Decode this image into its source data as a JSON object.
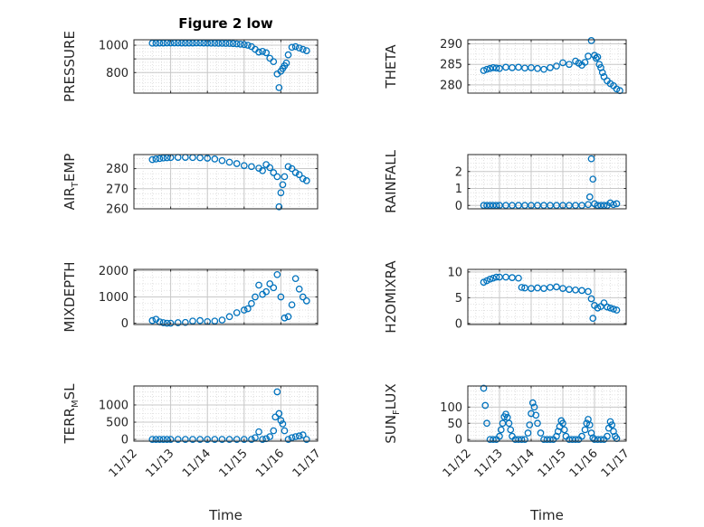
{
  "chart_data": [
    {
      "type": "scatter",
      "title": "Figure 2 low",
      "ylabel": "PRESSURE",
      "ylabel_parts": [
        "PRESSURE"
      ],
      "ylim": [
        650,
        1040
      ],
      "yticks": [
        800,
        900,
        1000
      ],
      "yticklabels": [
        "800",
        "",
        "1000"
      ],
      "xlim": [
        0,
        5
      ],
      "xticks": [
        0,
        1,
        2,
        3,
        4,
        5
      ],
      "xticklabels": [],
      "grid": true,
      "marker_color": "#0072BD",
      "x": [
        0.5,
        0.6,
        0.7,
        0.8,
        0.9,
        1.0,
        1.1,
        1.2,
        1.3,
        1.4,
        1.5,
        1.6,
        1.7,
        1.8,
        1.9,
        2.0,
        2.1,
        2.2,
        2.3,
        2.4,
        2.5,
        2.6,
        2.7,
        2.8,
        2.9,
        3.0,
        3.1,
        3.2,
        3.3,
        3.4,
        3.5,
        3.6,
        3.7,
        3.8,
        3.9,
        3.95,
        4.0,
        4.05,
        4.1,
        4.15,
        4.2,
        4.3,
        4.4,
        4.5,
        4.6,
        4.7
      ],
      "y": [
        1015,
        1015,
        1016,
        1016,
        1017,
        1017,
        1017,
        1017,
        1016,
        1016,
        1016,
        1016,
        1017,
        1017,
        1016,
        1016,
        1015,
        1015,
        1014,
        1014,
        1013,
        1013,
        1012,
        1010,
        1008,
        1005,
        1000,
        990,
        970,
        950,
        955,
        945,
        905,
        880,
        790,
        690,
        810,
        830,
        850,
        870,
        930,
        985,
        990,
        980,
        970,
        960
      ]
    },
    {
      "type": "scatter",
      "ylabel": "THETA",
      "ylabel_parts": [
        "THETA"
      ],
      "ylim": [
        278,
        291
      ],
      "yticks": [
        280,
        285,
        290
      ],
      "yticklabels": [
        "280",
        "285",
        "290"
      ],
      "xlim": [
        0,
        5
      ],
      "xticks": [
        0,
        1,
        2,
        3,
        4,
        5
      ],
      "xticklabels": [],
      "grid": true,
      "marker_color": "#0072BD",
      "x": [
        0.5,
        0.6,
        0.7,
        0.8,
        0.9,
        1.0,
        1.2,
        1.4,
        1.6,
        1.8,
        2.0,
        2.2,
        2.4,
        2.6,
        2.8,
        3.0,
        3.2,
        3.4,
        3.5,
        3.6,
        3.7,
        3.8,
        3.9,
        4.0,
        4.05,
        4.1,
        4.15,
        4.2,
        4.25,
        4.3,
        4.4,
        4.5,
        4.6,
        4.7,
        4.8
      ],
      "y": [
        283.5,
        283.8,
        284.0,
        284.2,
        284.1,
        284.0,
        284.3,
        284.2,
        284.3,
        284.1,
        284.2,
        284.0,
        283.8,
        284.2,
        284.6,
        285.4,
        285.0,
        285.8,
        285.3,
        284.8,
        285.5,
        287.0,
        290.8,
        287.2,
        286.5,
        286.8,
        285.0,
        284.2,
        283.0,
        282.0,
        281.0,
        280.3,
        279.8,
        279.0,
        278.6
      ]
    },
    {
      "type": "scatter",
      "ylabel": "AIR_TEMP",
      "ylabel_parts": [
        "AIR",
        "T",
        "EMP"
      ],
      "ylim": [
        260,
        287
      ],
      "yticks": [
        260,
        270,
        280
      ],
      "yticklabels": [
        "260",
        "270",
        "280"
      ],
      "xlim": [
        0,
        5
      ],
      "xticks": [
        0,
        1,
        2,
        3,
        4,
        5
      ],
      "xticklabels": [],
      "grid": true,
      "marker_color": "#0072BD",
      "x": [
        0.5,
        0.6,
        0.7,
        0.8,
        0.9,
        1.0,
        1.2,
        1.4,
        1.6,
        1.8,
        2.0,
        2.2,
        2.4,
        2.6,
        2.8,
        3.0,
        3.2,
        3.4,
        3.5,
        3.6,
        3.7,
        3.8,
        3.9,
        3.95,
        4.0,
        4.05,
        4.1,
        4.2,
        4.3,
        4.4,
        4.5,
        4.6,
        4.7
      ],
      "y": [
        284.5,
        284.8,
        285.0,
        285.3,
        285.4,
        285.5,
        285.6,
        285.6,
        285.5,
        285.4,
        285.2,
        284.8,
        284.0,
        283.2,
        282.5,
        281.5,
        281.0,
        280.2,
        279.0,
        282.0,
        280.5,
        278.0,
        276.0,
        261.0,
        268.0,
        272.0,
        276.0,
        281.0,
        280.0,
        278.0,
        277.0,
        275.0,
        274.0
      ]
    },
    {
      "type": "scatter",
      "ylabel": "RAINFALL",
      "ylabel_parts": [
        "RAINFALL"
      ],
      "ylim": [
        -0.2,
        3.0
      ],
      "yticks": [
        0,
        1,
        2
      ],
      "yticklabels": [
        "0",
        "1",
        "2"
      ],
      "xlim": [
        0,
        5
      ],
      "xticks": [
        0,
        1,
        2,
        3,
        4,
        5
      ],
      "xticklabels": [],
      "grid": true,
      "marker_color": "#0072BD",
      "x": [
        0.5,
        0.6,
        0.7,
        0.8,
        0.9,
        1.0,
        1.2,
        1.4,
        1.6,
        1.8,
        2.0,
        2.2,
        2.4,
        2.6,
        2.8,
        3.0,
        3.2,
        3.4,
        3.6,
        3.8,
        3.85,
        3.9,
        3.95,
        4.0,
        4.1,
        4.2,
        4.3,
        4.4,
        4.5,
        4.6,
        4.7
      ],
      "y": [
        0,
        0,
        0,
        0,
        0,
        0,
        0,
        0,
        0,
        0,
        0,
        0,
        0,
        0,
        0,
        0,
        0,
        0,
        0,
        0.05,
        0.5,
        2.75,
        1.55,
        0.1,
        0,
        0,
        0,
        0,
        0.15,
        0.05,
        0.1
      ]
    },
    {
      "type": "scatter",
      "ylabel": "MIXDEPTH",
      "ylabel_parts": [
        "MIXDEPTH"
      ],
      "ylim": [
        -50,
        2050
      ],
      "yticks": [
        0,
        1000,
        2000
      ],
      "yticklabels": [
        "0",
        "1000",
        "2000"
      ],
      "xlim": [
        0,
        5
      ],
      "xticks": [
        0,
        1,
        2,
        3,
        4,
        5
      ],
      "xticklabels": [],
      "grid": true,
      "marker_color": "#0072BD",
      "x": [
        0.5,
        0.6,
        0.7,
        0.8,
        0.9,
        1.0,
        1.2,
        1.4,
        1.6,
        1.8,
        2.0,
        2.2,
        2.4,
        2.6,
        2.8,
        3.0,
        3.1,
        3.2,
        3.3,
        3.4,
        3.5,
        3.6,
        3.7,
        3.8,
        3.9,
        4.0,
        4.1,
        4.2,
        4.3,
        4.4,
        4.5,
        4.6,
        4.7
      ],
      "y": [
        100,
        150,
        50,
        20,
        0,
        0,
        20,
        30,
        80,
        100,
        60,
        80,
        120,
        250,
        400,
        500,
        550,
        750,
        1000,
        1450,
        1100,
        1200,
        1500,
        1350,
        1850,
        1000,
        200,
        250,
        700,
        1700,
        1300,
        1000,
        850
      ]
    },
    {
      "type": "scatter",
      "ylabel": "H2OMIXRA",
      "ylabel_parts": [
        "H2OMIXRA"
      ],
      "ylim": [
        -0.2,
        10.5
      ],
      "yticks": [
        0,
        5,
        10
      ],
      "yticklabels": [
        "0",
        "5",
        "10"
      ],
      "xlim": [
        0,
        5
      ],
      "xticks": [
        0,
        1,
        2,
        3,
        4,
        5
      ],
      "xticklabels": [],
      "grid": true,
      "marker_color": "#0072BD",
      "x": [
        0.5,
        0.6,
        0.7,
        0.8,
        0.9,
        1.0,
        1.2,
        1.4,
        1.6,
        1.7,
        1.8,
        2.0,
        2.2,
        2.4,
        2.6,
        2.8,
        3.0,
        3.2,
        3.4,
        3.6,
        3.8,
        3.9,
        3.95,
        4.0,
        4.1,
        4.2,
        4.3,
        4.4,
        4.5,
        4.6,
        4.7
      ],
      "y": [
        8.0,
        8.3,
        8.6,
        8.8,
        9.0,
        9.0,
        9.0,
        8.9,
        8.8,
        7.0,
        6.9,
        6.8,
        6.9,
        6.8,
        7.0,
        7.1,
        6.8,
        6.6,
        6.5,
        6.4,
        6.2,
        4.8,
        1.0,
        3.5,
        3.0,
        3.3,
        4.0,
        3.2,
        3.0,
        2.8,
        2.6
      ]
    },
    {
      "type": "scatter",
      "ylabel": "TERR_MSL",
      "ylabel_parts": [
        "TERR",
        "M",
        "SL"
      ],
      "ylim": [
        -50,
        1550
      ],
      "yticks": [
        0,
        500,
        1000
      ],
      "yticklabels": [
        "0",
        "500",
        "1000"
      ],
      "xlim": [
        0,
        5
      ],
      "xticks": [
        0,
        1,
        2,
        3,
        4,
        5
      ],
      "xticklabels": [
        "11/12",
        "11/13",
        "11/14",
        "11/15",
        "11/16",
        "11/17"
      ],
      "xlabel": "Time",
      "grid": true,
      "marker_color": "#0072BD",
      "x": [
        0.5,
        0.6,
        0.7,
        0.8,
        0.9,
        1.0,
        1.2,
        1.4,
        1.6,
        1.8,
        2.0,
        2.2,
        2.4,
        2.6,
        2.8,
        3.0,
        3.2,
        3.3,
        3.4,
        3.5,
        3.6,
        3.7,
        3.8,
        3.85,
        3.9,
        3.95,
        4.0,
        4.05,
        4.1,
        4.2,
        4.3,
        4.4,
        4.5,
        4.6,
        4.7
      ],
      "y": [
        0,
        0,
        0,
        0,
        0,
        0,
        0,
        0,
        0,
        0,
        0,
        0,
        0,
        0,
        0,
        0,
        0,
        50,
        220,
        0,
        20,
        80,
        250,
        650,
        1380,
        750,
        550,
        450,
        250,
        0,
        50,
        80,
        100,
        130,
        0
      ]
    },
    {
      "type": "scatter",
      "ylabel": "SUN_FLUX",
      "ylabel_parts": [
        "SUN",
        "F",
        "LUX"
      ],
      "ylim": [
        -5,
        165
      ],
      "yticks": [
        0,
        50,
        100
      ],
      "yticklabels": [
        "0",
        "50",
        "100"
      ],
      "xlim": [
        0,
        5
      ],
      "xticks": [
        0,
        1,
        2,
        3,
        4,
        5
      ],
      "xticklabels": [
        "11/12",
        "11/13",
        "11/14",
        "11/15",
        "11/16",
        "11/17"
      ],
      "xlabel": "Time",
      "grid": true,
      "marker_color": "#0072BD",
      "x": [
        0.5,
        0.55,
        0.6,
        0.7,
        0.8,
        0.9,
        1.0,
        1.05,
        1.1,
        1.15,
        1.2,
        1.25,
        1.3,
        1.35,
        1.4,
        1.5,
        1.6,
        1.7,
        1.8,
        1.9,
        1.95,
        2.0,
        2.05,
        2.1,
        2.15,
        2.2,
        2.3,
        2.4,
        2.5,
        2.6,
        2.7,
        2.8,
        2.85,
        2.9,
        2.95,
        3.0,
        3.05,
        3.1,
        3.2,
        3.3,
        3.4,
        3.5,
        3.6,
        3.7,
        3.75,
        3.8,
        3.85,
        3.9,
        3.95,
        4.0,
        4.1,
        4.2,
        4.3,
        4.4,
        4.45,
        4.5,
        4.55,
        4.6,
        4.65,
        4.7
      ],
      "y": [
        158,
        105,
        50,
        0,
        0,
        0,
        10,
        30,
        50,
        70,
        78,
        68,
        50,
        30,
        10,
        0,
        0,
        0,
        0,
        20,
        45,
        80,
        113,
        100,
        75,
        50,
        20,
        0,
        0,
        0,
        0,
        10,
        25,
        40,
        58,
        50,
        30,
        10,
        0,
        0,
        0,
        0,
        10,
        30,
        50,
        62,
        45,
        20,
        5,
        0,
        0,
        0,
        0,
        10,
        35,
        55,
        45,
        25,
        10,
        3
      ]
    }
  ]
}
